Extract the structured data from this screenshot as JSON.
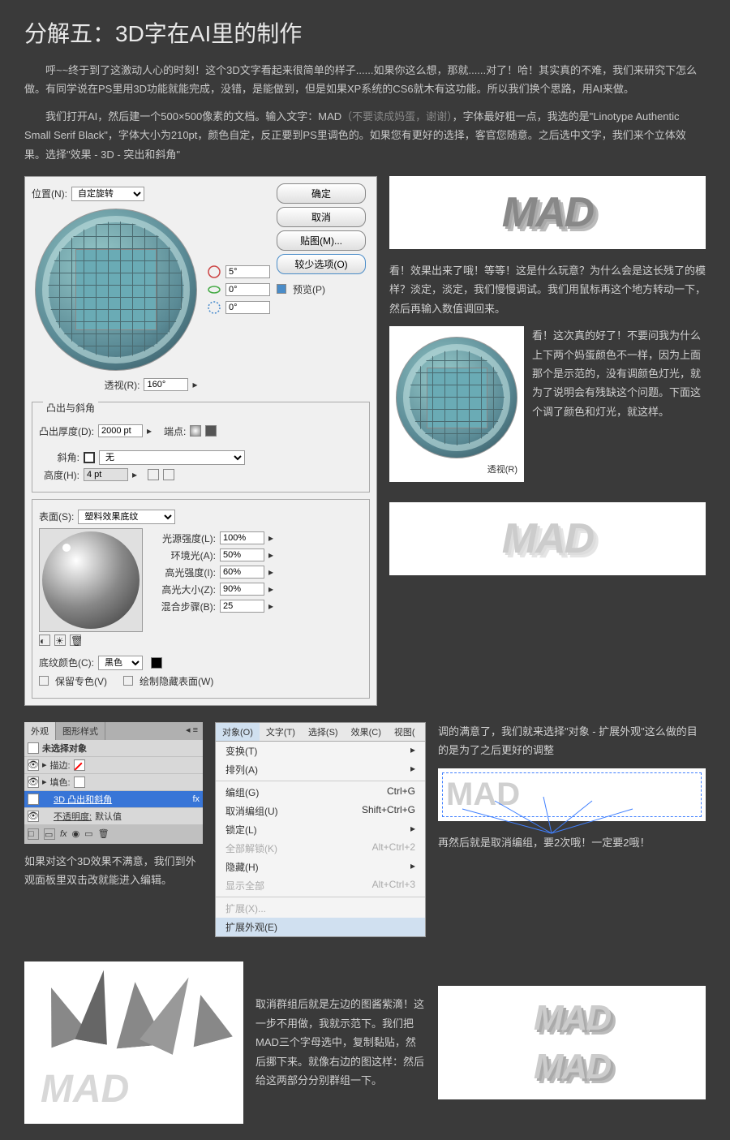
{
  "title": "分解五：3D字在AI里的制作",
  "para1": "呼~~终于到了这激动人心的时刻！这个3D文字看起来很简单的样子......如果你这么想，那就......对了！哈！其实真的不难，我们来研究下怎么做。有同学说在PS里用3D功能就能完成，没错，是能做到，但是如果XP系统的CS6就木有这功能。所以我们换个思路，用AI来做。",
  "para2_a": "我们打开AI，然后建一个500×500像素的文档。输入文字：MAD",
  "para2_gray": "（不要读成妈蛋，谢谢）",
  "para2_b": "，字体最好粗一点，我选的是\"Linotype Authentic Small Serif Black\"，字体大小为210pt，颜色自定，反正要到PS里调色的。如果您有更好的选择，客官您随意。之后选中文字，我们来个立体效果。选择\"效果 - 3D - 突出和斜角\"",
  "dialog": {
    "position_label": "位置(N):",
    "position_value": "自定旋转",
    "rot1": "5°",
    "rot2": "0°",
    "rot3": "0°",
    "perspective_label": "透视(R):",
    "perspective_value": "160°",
    "ok": "确定",
    "cancel": "取消",
    "map": "贴图(M)...",
    "fewer": "较少选项(O)",
    "preview": "预览(P)",
    "extrude_title": "凸出与斜角",
    "depth_label": "凸出厚度(D):",
    "depth_value": "2000 pt",
    "cap_label": "端点:",
    "bevel_label": "斜角:",
    "bevel_value": "无",
    "height_label": "高度(H):",
    "height_value": "4 pt",
    "surface_label": "表面(S):",
    "surface_value": "塑料效果底纹",
    "light_intensity": "光源强度(L):",
    "light_intensity_v": "100%",
    "ambient": "环境光(A):",
    "ambient_v": "50%",
    "highlight_intensity": "高光强度(I):",
    "highlight_intensity_v": "60%",
    "highlight_size": "高光大小(Z):",
    "highlight_size_v": "90%",
    "blend_steps": "混合步骤(B):",
    "blend_steps_v": "25",
    "shade_color": "底纹颜色(C):",
    "shade_color_v": "黑色",
    "preserve_spot": "保留专色(V)",
    "draw_hidden": "绘制隐藏表面(W)"
  },
  "mad": "MAD",
  "caption1": "看！效果出来了哦！等等！这是什么玩意？为什么会是这长残了的模样？淡定，淡定，我们慢慢调试。我们用鼠标再这个地方转动一下，然后再输入数值调回来。",
  "caption2": "看！这次真的好了！不要问我为什么上下两个妈蛋颜色不一样，因为上面那个是示范的，没有调颜色灯光，就为了说明会有残缺这个问题。下面这个调了颜色和灯光，就这样。",
  "perspective2": "透视(R)",
  "appearance": {
    "tab1": "外观",
    "tab2": "图形样式",
    "noselect": "未选择对象",
    "stroke": "描边:",
    "fill": "填色:",
    "extrude3d": "3D 凸出和斜角",
    "opacity": "不透明度:",
    "opacity_v": "默认值"
  },
  "caption3": "如果对这个3D效果不满意，我们到外观面板里双击改就能进入编辑。",
  "menu": {
    "bar": [
      "对象(O)",
      "文字(T)",
      "选择(S)",
      "效果(C)",
      "视图("
    ],
    "items": [
      {
        "label": "变换(T)",
        "arrow": true
      },
      {
        "label": "排列(A)",
        "arrow": true
      },
      {
        "sep": true
      },
      {
        "label": "编组(G)",
        "key": "Ctrl+G"
      },
      {
        "label": "取消编组(U)",
        "key": "Shift+Ctrl+G"
      },
      {
        "label": "锁定(L)",
        "arrow": true
      },
      {
        "label": "全部解锁(K)",
        "key": "Alt+Ctrl+2",
        "disabled": true
      },
      {
        "label": "隐藏(H)",
        "arrow": true
      },
      {
        "label": "显示全部",
        "key": "Alt+Ctrl+3",
        "disabled": true
      },
      {
        "sep": true
      },
      {
        "label": "扩展(X)...",
        "disabled": true
      },
      {
        "label": "扩展外观(E)",
        "hl": true
      }
    ]
  },
  "caption4": "调的满意了，我们就来选择\"对象 - 扩展外观\"这么做的目的是为了之后更好的调整",
  "caption5": "再然后就是取消编组，要2次哦！一定要2哦！",
  "caption6": "取消群组后就是左边的图酱紫滴！这一步不用做，我就示范下。我们把MAD三个字母选中，复制黏贴，然后挪下来。就像右边的图这样：然后给这两部分分别群组一下。"
}
